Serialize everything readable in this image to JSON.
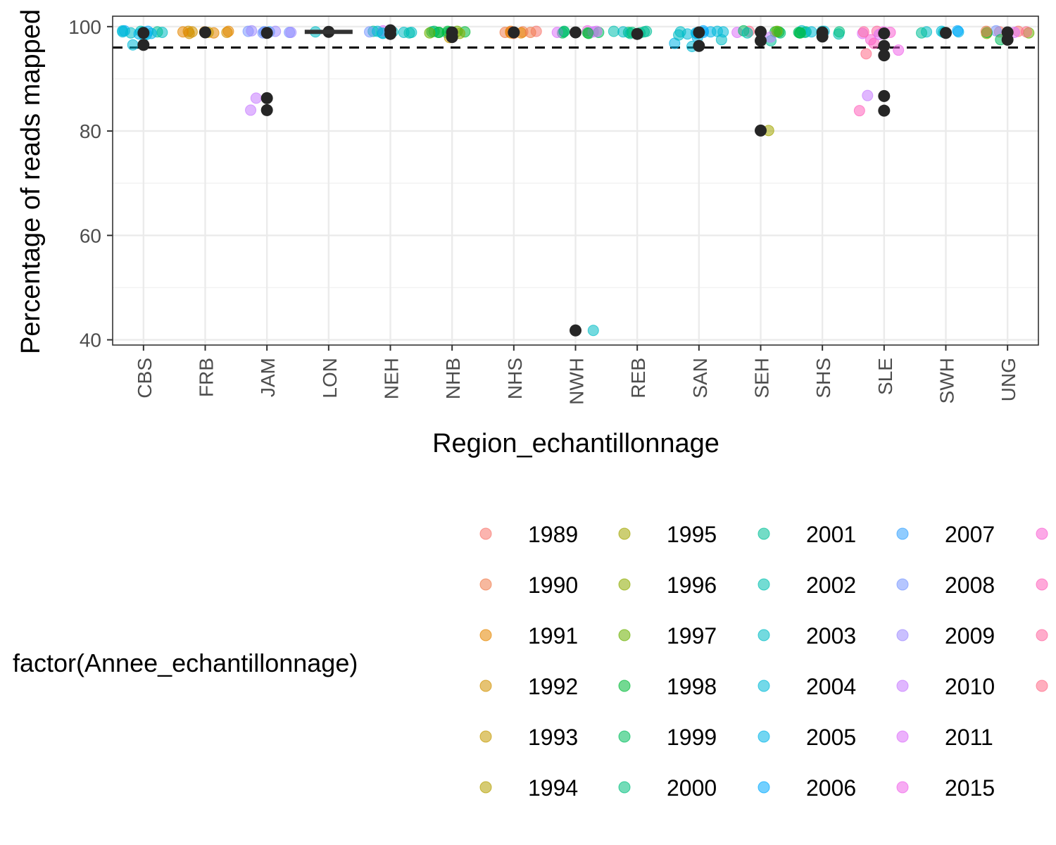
{
  "chart_data": {
    "type": "scatter",
    "xlabel": "Region_echantillonnage",
    "ylabel": "Percentage of reads mapped",
    "categories": [
      "CBS",
      "FRB",
      "JAM",
      "LON",
      "NEH",
      "NHB",
      "NHS",
      "NWH",
      "REB",
      "SAN",
      "SEH",
      "SHS",
      "SLE",
      "SWH",
      "UNG"
    ],
    "ylim": [
      39,
      102
    ],
    "y_ticks": [
      40,
      60,
      80,
      100
    ],
    "threshold": 96,
    "grid": true,
    "legend": {
      "title": "factor(Annee_echantillonnage)",
      "placement": "bottom",
      "entries": [
        {
          "label": "1989",
          "color": "#F8766D"
        },
        {
          "label": "1990",
          "color": "#F07E4F"
        },
        {
          "label": "1991",
          "color": "#E58700"
        },
        {
          "label": "1992",
          "color": "#D29200"
        },
        {
          "label": "1993",
          "color": "#C49A00"
        },
        {
          "label": "1994",
          "color": "#B5A000"
        },
        {
          "label": "1995",
          "color": "#A3A500"
        },
        {
          "label": "1996",
          "color": "#8EAB00"
        },
        {
          "label": "1997",
          "color": "#6BB100"
        },
        {
          "label": "1998",
          "color": "#00BA38"
        },
        {
          "label": "1999",
          "color": "#00BD5C"
        },
        {
          "label": "2000",
          "color": "#00BF7D"
        },
        {
          "label": "2001",
          "color": "#00C097"
        },
        {
          "label": "2002",
          "color": "#00C0AF"
        },
        {
          "label": "2003",
          "color": "#00BCC5"
        },
        {
          "label": "2004",
          "color": "#00BAD7"
        },
        {
          "label": "2005",
          "color": "#00B5E8"
        },
        {
          "label": "2006",
          "color": "#00A9FF"
        },
        {
          "label": "2007",
          "color": "#35A2FF"
        },
        {
          "label": "2008",
          "color": "#7997FF"
        },
        {
          "label": "2009",
          "color": "#9F8CFF"
        },
        {
          "label": "2010",
          "color": "#C77CFF"
        },
        {
          "label": "2011",
          "color": "#DC71FA"
        },
        {
          "label": "2015",
          "color": "#F066EA"
        },
        {
          "label": "",
          "color": "#FA62D4"
        },
        {
          "label": "",
          "color": "#FF62BC"
        },
        {
          "label": "",
          "color": "#FF68A1"
        },
        {
          "label": "",
          "color": "#FF6C89"
        }
      ]
    },
    "summary_markers": [
      {
        "region": "CBS",
        "values": [
          98.8,
          96.5
        ]
      },
      {
        "region": "FRB",
        "values": [
          98.9
        ]
      },
      {
        "region": "JAM",
        "values": [
          98.8,
          86.3,
          84.0
        ]
      },
      {
        "region": "LON",
        "values": [
          99.0
        ]
      },
      {
        "region": "NEH",
        "values": [
          99.3,
          98.6
        ]
      },
      {
        "region": "NHB",
        "values": [
          98.9,
          98.0
        ]
      },
      {
        "region": "NHS",
        "values": [
          98.9
        ]
      },
      {
        "region": "NWH",
        "values": [
          98.9,
          41.8
        ]
      },
      {
        "region": "REB",
        "values": [
          98.6
        ]
      },
      {
        "region": "SAN",
        "values": [
          98.9,
          96.3
        ]
      },
      {
        "region": "SEH",
        "values": [
          99.0,
          97.3,
          80.1
        ]
      },
      {
        "region": "SHS",
        "values": [
          98.9,
          98.1
        ]
      },
      {
        "region": "SLE",
        "values": [
          98.7,
          96.3,
          94.5,
          86.7,
          83.9
        ]
      },
      {
        "region": "SWH",
        "values": [
          98.8
        ]
      },
      {
        "region": "UNG",
        "values": [
          98.9,
          97.5
        ]
      }
    ],
    "points": [
      {
        "region": "CBS",
        "y": 99.0,
        "c": "#00B5E8"
      },
      {
        "region": "CBS",
        "y": 98.5,
        "c": "#00BAD7"
      },
      {
        "region": "CBS",
        "y": 99.2,
        "c": "#00A9FF"
      },
      {
        "region": "CBS",
        "y": 98.8,
        "c": "#00BCC5"
      },
      {
        "region": "CBS",
        "y": 99.1,
        "c": "#00C0AF"
      },
      {
        "region": "CBS",
        "y": 98.4,
        "c": "#00B5E8"
      },
      {
        "region": "CBS",
        "y": 99.0,
        "c": "#00BAD7"
      },
      {
        "region": "CBS",
        "y": 98.9,
        "c": "#00BCC5"
      },
      {
        "region": "CBS",
        "y": 99.1,
        "c": "#00A9FF"
      },
      {
        "region": "CBS",
        "y": 98.6,
        "c": "#00B5E8"
      },
      {
        "region": "CBS",
        "y": 96.5,
        "c": "#00BAD7"
      },
      {
        "region": "CBS",
        "y": 99.0,
        "c": "#00C097"
      },
      {
        "region": "CBS",
        "y": 98.7,
        "c": "#00B5E8"
      },
      {
        "region": "CBS",
        "y": 99.2,
        "c": "#00BAD7"
      },
      {
        "region": "FRB",
        "y": 98.9,
        "c": "#E58700"
      },
      {
        "region": "FRB",
        "y": 99.0,
        "c": "#D29200"
      },
      {
        "region": "FRB",
        "y": 98.8,
        "c": "#E58700"
      },
      {
        "region": "FRB",
        "y": 99.1,
        "c": "#D29200"
      },
      {
        "region": "FRB",
        "y": 98.9,
        "c": "#C49A00"
      },
      {
        "region": "FRB",
        "y": 99.0,
        "c": "#E58700"
      },
      {
        "region": "FRB",
        "y": 98.7,
        "c": "#D29200"
      },
      {
        "region": "FRB",
        "y": 99.0,
        "c": "#E58700"
      },
      {
        "region": "FRB",
        "y": 98.9,
        "c": "#D29200"
      },
      {
        "region": "FRB",
        "y": 99.1,
        "c": "#E58700"
      },
      {
        "region": "JAM",
        "y": 99.1,
        "c": "#7997FF"
      },
      {
        "region": "JAM",
        "y": 99.0,
        "c": "#35A2FF"
      },
      {
        "region": "JAM",
        "y": 98.9,
        "c": "#7997FF"
      },
      {
        "region": "JAM",
        "y": 99.2,
        "c": "#9F8CFF"
      },
      {
        "region": "JAM",
        "y": 98.8,
        "c": "#7997FF"
      },
      {
        "region": "JAM",
        "y": 99.0,
        "c": "#35A2FF"
      },
      {
        "region": "JAM",
        "y": 99.1,
        "c": "#9F8CFF"
      },
      {
        "region": "JAM",
        "y": 86.3,
        "c": "#C77CFF"
      },
      {
        "region": "JAM",
        "y": 84.0,
        "c": "#C77CFF"
      },
      {
        "region": "JAM",
        "y": 98.9,
        "c": "#9F8CFF"
      },
      {
        "region": "JAM",
        "y": 99.0,
        "c": "#7997FF"
      },
      {
        "region": "LON",
        "y": 99.0,
        "c": "#00BCC5"
      },
      {
        "region": "NEH",
        "y": 99.0,
        "c": "#00BCC5"
      },
      {
        "region": "NEH",
        "y": 98.8,
        "c": "#00BAD7"
      },
      {
        "region": "NEH",
        "y": 99.1,
        "c": "#00C097"
      },
      {
        "region": "NEH",
        "y": 98.9,
        "c": "#00BCC5"
      },
      {
        "region": "NEH",
        "y": 99.2,
        "c": "#DC71FA"
      },
      {
        "region": "NEH",
        "y": 98.7,
        "c": "#00BAD7"
      },
      {
        "region": "NEH",
        "y": 99.0,
        "c": "#7997FF"
      },
      {
        "region": "NEH",
        "y": 98.9,
        "c": "#00BCC5"
      },
      {
        "region": "NEH",
        "y": 99.1,
        "c": "#00BAD7"
      },
      {
        "region": "NEH",
        "y": 98.8,
        "c": "#00C0AF"
      },
      {
        "region": "NHB",
        "y": 99.0,
        "c": "#00BA38"
      },
      {
        "region": "NHB",
        "y": 98.9,
        "c": "#00BD5C"
      },
      {
        "region": "NHB",
        "y": 99.1,
        "c": "#6BB100"
      },
      {
        "region": "NHB",
        "y": 98.8,
        "c": "#00BF7D"
      },
      {
        "region": "NHB",
        "y": 99.0,
        "c": "#00BA38"
      },
      {
        "region": "NHB",
        "y": 98.7,
        "c": "#8EAB00"
      },
      {
        "region": "NHB",
        "y": 99.1,
        "c": "#00BD5C"
      },
      {
        "region": "NHB",
        "y": 98.9,
        "c": "#00BA38"
      },
      {
        "region": "NHB",
        "y": 97.9,
        "c": "#C49A00"
      },
      {
        "region": "NHB",
        "y": 99.0,
        "c": "#00BF7D"
      },
      {
        "region": "NHB",
        "y": 98.8,
        "c": "#6BB100"
      },
      {
        "region": "NHB",
        "y": 99.1,
        "c": "#00BA38"
      },
      {
        "region": "NHS",
        "y": 99.0,
        "c": "#F07E4F"
      },
      {
        "region": "NHS",
        "y": 98.8,
        "c": "#E58700"
      },
      {
        "region": "NHS",
        "y": 99.1,
        "c": "#F8766D"
      },
      {
        "region": "NHS",
        "y": 98.9,
        "c": "#F07E4F"
      },
      {
        "region": "NHS",
        "y": 99.0,
        "c": "#D29200"
      },
      {
        "region": "NHS",
        "y": 98.7,
        "c": "#F07E4F"
      },
      {
        "region": "NHS",
        "y": 99.1,
        "c": "#E58700"
      },
      {
        "region": "NHS",
        "y": 98.9,
        "c": "#F07E4F"
      },
      {
        "region": "NHS",
        "y": 99.0,
        "c": "#F8766D"
      },
      {
        "region": "NHS",
        "y": 98.8,
        "c": "#E58700"
      },
      {
        "region": "NWH",
        "y": 99.0,
        "c": "#00BA38"
      },
      {
        "region": "NWH",
        "y": 98.8,
        "c": "#00BD5C"
      },
      {
        "region": "NWH",
        "y": 99.2,
        "c": "#F066EA"
      },
      {
        "region": "NWH",
        "y": 98.9,
        "c": "#DC71FA"
      },
      {
        "region": "NWH",
        "y": 99.1,
        "c": "#00BF7D"
      },
      {
        "region": "NWH",
        "y": 98.7,
        "c": "#00BA38"
      },
      {
        "region": "NWH",
        "y": 99.0,
        "c": "#C77CFF"
      },
      {
        "region": "NWH",
        "y": 98.9,
        "c": "#00BD5C"
      },
      {
        "region": "NWH",
        "y": 99.1,
        "c": "#DC71FA"
      },
      {
        "region": "NWH",
        "y": 41.8,
        "c": "#00BCC5"
      },
      {
        "region": "NWH",
        "y": 98.8,
        "c": "#00BA38"
      },
      {
        "region": "REB",
        "y": 99.0,
        "c": "#00C097"
      },
      {
        "region": "REB",
        "y": 98.8,
        "c": "#00BF7D"
      },
      {
        "region": "REB",
        "y": 99.1,
        "c": "#00C0AF"
      },
      {
        "region": "REB",
        "y": 98.9,
        "c": "#00BD5C"
      },
      {
        "region": "REB",
        "y": 98.7,
        "c": "#00C097"
      },
      {
        "region": "REB",
        "y": 99.0,
        "c": "#00BCC5"
      },
      {
        "region": "REB",
        "y": 98.9,
        "c": "#00BF7D"
      },
      {
        "region": "REB",
        "y": 99.1,
        "c": "#00C097"
      },
      {
        "region": "SAN",
        "y": 99.0,
        "c": "#00B5E8"
      },
      {
        "region": "SAN",
        "y": 98.6,
        "c": "#00BAD7"
      },
      {
        "region": "SAN",
        "y": 97.5,
        "c": "#00BCC5"
      },
      {
        "region": "SAN",
        "y": 96.8,
        "c": "#00B5E8"
      },
      {
        "region": "SAN",
        "y": 96.2,
        "c": "#00BAD7"
      },
      {
        "region": "SAN",
        "y": 99.2,
        "c": "#00A9FF"
      },
      {
        "region": "SAN",
        "y": 98.8,
        "c": "#00B5E8"
      },
      {
        "region": "SAN",
        "y": 98.4,
        "c": "#00BCC5"
      },
      {
        "region": "SAN",
        "y": 99.0,
        "c": "#00BAD7"
      },
      {
        "region": "SAN",
        "y": 98.7,
        "c": "#00B5E8"
      },
      {
        "region": "SAN",
        "y": 99.1,
        "c": "#00BAD7"
      },
      {
        "region": "SAN",
        "y": 98.9,
        "c": "#00A9FF"
      },
      {
        "region": "SAN",
        "y": 97.9,
        "c": "#00B5E8"
      },
      {
        "region": "SAN",
        "y": 99.0,
        "c": "#00BCC5"
      },
      {
        "region": "SEH",
        "y": 99.0,
        "c": "#00BA38"
      },
      {
        "region": "SEH",
        "y": 98.8,
        "c": "#00BF7D"
      },
      {
        "region": "SEH",
        "y": 99.1,
        "c": "#FF6C89"
      },
      {
        "region": "SEH",
        "y": 98.9,
        "c": "#DC71FA"
      },
      {
        "region": "SEH",
        "y": 99.2,
        "c": "#00BD5C"
      },
      {
        "region": "SEH",
        "y": 97.3,
        "c": "#00C097"
      },
      {
        "region": "SEH",
        "y": 98.0,
        "c": "#C77CFF"
      },
      {
        "region": "SEH",
        "y": 80.1,
        "c": "#A3A500"
      },
      {
        "region": "SEH",
        "y": 99.0,
        "c": "#00BA38"
      },
      {
        "region": "SEH",
        "y": 98.8,
        "c": "#00C0AF"
      },
      {
        "region": "SEH",
        "y": 99.1,
        "c": "#6BB100"
      },
      {
        "region": "SHS",
        "y": 99.0,
        "c": "#00BF7D"
      },
      {
        "region": "SHS",
        "y": 98.8,
        "c": "#00C097"
      },
      {
        "region": "SHS",
        "y": 99.2,
        "c": "#00BCC5"
      },
      {
        "region": "SHS",
        "y": 98.9,
        "c": "#00BD5C"
      },
      {
        "region": "SHS",
        "y": 99.1,
        "c": "#00BAD7"
      },
      {
        "region": "SHS",
        "y": 98.6,
        "c": "#00C0AF"
      },
      {
        "region": "SHS",
        "y": 99.0,
        "c": "#00BF7D"
      },
      {
        "region": "SHS",
        "y": 98.9,
        "c": "#00C097"
      },
      {
        "region": "SHS",
        "y": 99.1,
        "c": "#00BCC5"
      },
      {
        "region": "SHS",
        "y": 98.8,
        "c": "#00BA38"
      },
      {
        "region": "SHS",
        "y": 99.0,
        "c": "#00BAD7"
      },
      {
        "region": "SLE",
        "y": 99.0,
        "c": "#F066EA"
      },
      {
        "region": "SLE",
        "y": 98.7,
        "c": "#DC71FA"
      },
      {
        "region": "SLE",
        "y": 99.1,
        "c": "#FF68A1"
      },
      {
        "region": "SLE",
        "y": 97.5,
        "c": "#FA62D4"
      },
      {
        "region": "SLE",
        "y": 96.8,
        "c": "#FF62BC"
      },
      {
        "region": "SLE",
        "y": 95.5,
        "c": "#F066EA"
      },
      {
        "region": "SLE",
        "y": 94.8,
        "c": "#FF6C89"
      },
      {
        "region": "SLE",
        "y": 86.8,
        "c": "#C77CFF"
      },
      {
        "region": "SLE",
        "y": 83.9,
        "c": "#FF62BC"
      },
      {
        "region": "SLE",
        "y": 98.9,
        "c": "#FA62D4"
      },
      {
        "region": "SLE",
        "y": 99.0,
        "c": "#FF68A1"
      },
      {
        "region": "SLE",
        "y": 98.5,
        "c": "#DC71FA"
      },
      {
        "region": "SWH",
        "y": 99.0,
        "c": "#00BCC5"
      },
      {
        "region": "SWH",
        "y": 98.9,
        "c": "#00C0AF"
      },
      {
        "region": "SWH",
        "y": 99.1,
        "c": "#00BAD7"
      },
      {
        "region": "SWH",
        "y": 98.8,
        "c": "#00C097"
      },
      {
        "region": "SWH",
        "y": 99.0,
        "c": "#00B5E8"
      },
      {
        "region": "SWH",
        "y": 98.9,
        "c": "#00BCC5"
      },
      {
        "region": "SWH",
        "y": 99.2,
        "c": "#00A9FF"
      },
      {
        "region": "UNG",
        "y": 99.0,
        "c": "#F8766D"
      },
      {
        "region": "UNG",
        "y": 98.8,
        "c": "#6BB100"
      },
      {
        "region": "UNG",
        "y": 99.1,
        "c": "#F8766D"
      },
      {
        "region": "UNG",
        "y": 98.9,
        "c": "#DC71FA"
      },
      {
        "region": "UNG",
        "y": 99.2,
        "c": "#7997FF"
      },
      {
        "region": "UNG",
        "y": 97.5,
        "c": "#00BD5C"
      },
      {
        "region": "UNG",
        "y": 98.7,
        "c": "#8EAB00"
      },
      {
        "region": "UNG",
        "y": 99.0,
        "c": "#FF6C89"
      },
      {
        "region": "UNG",
        "y": 98.9,
        "c": "#00BA38"
      },
      {
        "region": "UNG",
        "y": 99.1,
        "c": "#F07E4F"
      }
    ]
  }
}
